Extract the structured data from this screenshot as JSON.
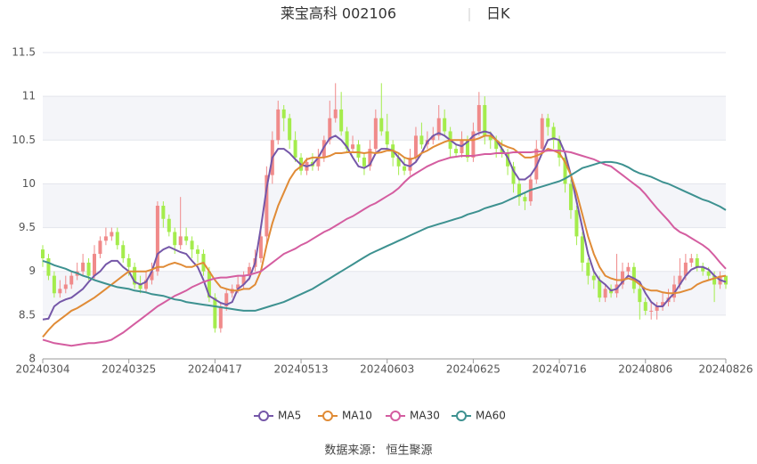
{
  "chart_data": {
    "type": "candlestick",
    "title": "莱宝高科 002106",
    "subtitle": "日K",
    "source": "数据来源： 恒生聚源",
    "up_color": "#f08a8a",
    "down_color": "#a4ec4c",
    "ylim": [
      8,
      11.5
    ],
    "yticks": [
      8,
      8.5,
      9,
      9.5,
      10,
      10.5,
      11,
      11.5
    ],
    "grid": true,
    "legend": "bottom",
    "categories": [
      "20240304",
      null,
      null,
      null,
      null,
      null,
      null,
      null,
      null,
      null,
      null,
      null,
      null,
      null,
      null,
      "20240325",
      null,
      null,
      null,
      null,
      null,
      null,
      null,
      null,
      null,
      null,
      null,
      null,
      null,
      null,
      "20240417",
      null,
      null,
      null,
      null,
      null,
      null,
      null,
      null,
      null,
      null,
      null,
      null,
      null,
      null,
      "20240513",
      null,
      null,
      null,
      null,
      null,
      null,
      null,
      null,
      null,
      null,
      null,
      null,
      null,
      null,
      "20240603",
      null,
      null,
      null,
      null,
      null,
      null,
      null,
      null,
      null,
      null,
      null,
      null,
      null,
      null,
      "20240625",
      null,
      null,
      null,
      null,
      null,
      null,
      null,
      null,
      null,
      null,
      null,
      null,
      null,
      null,
      "20240716",
      null,
      null,
      null,
      null,
      null,
      null,
      null,
      null,
      null,
      null,
      null,
      null,
      null,
      null,
      "20240806",
      null,
      null,
      null,
      null,
      null,
      null,
      null,
      null,
      null,
      null,
      null,
      null,
      null,
      "20240826"
    ],
    "ohlc": [
      [
        9.25,
        9.15,
        9.05,
        9.3
      ],
      [
        9.15,
        8.95,
        8.9,
        9.2
      ],
      [
        8.95,
        8.75,
        8.7,
        9.0
      ],
      [
        8.75,
        8.8,
        8.7,
        8.9
      ],
      [
        8.8,
        8.85,
        8.75,
        8.95
      ],
      [
        8.85,
        8.95,
        8.8,
        9.0
      ],
      [
        8.95,
        9.0,
        8.9,
        9.1
      ],
      [
        9.0,
        9.1,
        8.95,
        9.2
      ],
      [
        9.1,
        8.95,
        8.9,
        9.15
      ],
      [
        8.95,
        9.2,
        8.9,
        9.3
      ],
      [
        9.2,
        9.35,
        9.15,
        9.4
      ],
      [
        9.35,
        9.4,
        9.3,
        9.5
      ],
      [
        9.4,
        9.45,
        9.35,
        9.5
      ],
      [
        9.45,
        9.3,
        9.25,
        9.5
      ],
      [
        9.3,
        9.15,
        9.1,
        9.35
      ],
      [
        9.15,
        9.05,
        8.95,
        9.2
      ],
      [
        9.05,
        8.85,
        8.8,
        9.1
      ],
      [
        8.85,
        8.8,
        8.75,
        8.95
      ],
      [
        8.8,
        8.9,
        8.75,
        9.0
      ],
      [
        8.9,
        9.0,
        8.85,
        9.1
      ],
      [
        9.0,
        9.75,
        8.95,
        9.8
      ],
      [
        9.75,
        9.6,
        9.5,
        9.8
      ],
      [
        9.6,
        9.45,
        9.4,
        9.65
      ],
      [
        9.45,
        9.3,
        9.2,
        9.5
      ],
      [
        9.3,
        9.4,
        9.25,
        9.85
      ],
      [
        9.4,
        9.35,
        9.3,
        9.5
      ],
      [
        9.35,
        9.25,
        9.15,
        9.4
      ],
      [
        9.25,
        9.2,
        9.1,
        9.3
      ],
      [
        9.2,
        9.0,
        8.95,
        9.25
      ],
      [
        9.0,
        8.7,
        8.65,
        9.05
      ],
      [
        8.7,
        8.35,
        8.3,
        8.75
      ],
      [
        8.35,
        8.6,
        8.3,
        8.65
      ],
      [
        8.6,
        8.75,
        8.55,
        8.8
      ],
      [
        8.75,
        8.8,
        8.7,
        8.85
      ],
      [
        8.8,
        8.85,
        8.75,
        8.95
      ],
      [
        8.85,
        8.95,
        8.8,
        9.0
      ],
      [
        8.95,
        9.05,
        8.9,
        9.1
      ],
      [
        9.05,
        9.15,
        9.0,
        9.25
      ],
      [
        9.15,
        9.4,
        9.1,
        9.5
      ],
      [
        9.4,
        10.1,
        9.3,
        10.2
      ],
      [
        10.1,
        10.5,
        10.0,
        10.6
      ],
      [
        10.5,
        10.85,
        10.45,
        10.95
      ],
      [
        10.85,
        10.75,
        10.6,
        10.9
      ],
      [
        10.75,
        10.5,
        10.4,
        10.8
      ],
      [
        10.5,
        10.3,
        10.25,
        10.6
      ],
      [
        10.3,
        10.15,
        10.1,
        10.35
      ],
      [
        10.15,
        10.25,
        10.1,
        10.3
      ],
      [
        10.25,
        10.2,
        10.15,
        10.35
      ],
      [
        10.2,
        10.3,
        10.15,
        10.4
      ],
      [
        10.3,
        10.5,
        10.25,
        10.55
      ],
      [
        10.5,
        10.75,
        10.45,
        10.95
      ],
      [
        10.75,
        10.85,
        10.7,
        11.15
      ],
      [
        10.85,
        10.6,
        10.55,
        11.05
      ],
      [
        10.6,
        10.4,
        10.35,
        10.65
      ],
      [
        10.4,
        10.45,
        10.35,
        10.55
      ],
      [
        10.45,
        10.3,
        10.25,
        10.5
      ],
      [
        10.3,
        10.2,
        10.1,
        10.35
      ],
      [
        10.2,
        10.4,
        10.15,
        10.5
      ],
      [
        10.4,
        10.75,
        10.35,
        10.85
      ],
      [
        10.75,
        10.6,
        10.55,
        11.15
      ],
      [
        10.6,
        10.45,
        10.4,
        10.8
      ],
      [
        10.45,
        10.3,
        10.2,
        10.5
      ],
      [
        10.3,
        10.2,
        10.1,
        10.35
      ],
      [
        10.2,
        10.15,
        10.1,
        10.3
      ],
      [
        10.15,
        10.3,
        10.1,
        10.4
      ],
      [
        10.3,
        10.55,
        10.25,
        10.65
      ],
      [
        10.55,
        10.45,
        10.4,
        10.7
      ],
      [
        10.45,
        10.5,
        10.4,
        10.6
      ],
      [
        10.5,
        10.55,
        10.45,
        10.65
      ],
      [
        10.55,
        10.75,
        10.5,
        10.9
      ],
      [
        10.75,
        10.6,
        10.55,
        10.85
      ],
      [
        10.6,
        10.4,
        10.3,
        10.65
      ],
      [
        10.4,
        10.35,
        10.3,
        10.45
      ],
      [
        10.35,
        10.5,
        10.3,
        10.6
      ],
      [
        10.5,
        10.3,
        10.25,
        10.55
      ],
      [
        10.3,
        10.6,
        10.25,
        10.7
      ],
      [
        10.6,
        10.9,
        10.55,
        11.05
      ],
      [
        10.9,
        10.55,
        10.45,
        11.0
      ],
      [
        10.55,
        10.5,
        10.4,
        10.6
      ],
      [
        10.5,
        10.4,
        10.3,
        10.55
      ],
      [
        10.4,
        10.35,
        10.3,
        10.5
      ],
      [
        10.35,
        10.2,
        10.1,
        10.4
      ],
      [
        10.2,
        10.0,
        9.9,
        10.25
      ],
      [
        10.0,
        9.85,
        9.75,
        10.05
      ],
      [
        9.85,
        9.8,
        9.7,
        9.9
      ],
      [
        9.8,
        10.05,
        9.75,
        10.1
      ],
      [
        10.05,
        10.4,
        10.0,
        10.5
      ],
      [
        10.4,
        10.75,
        10.35,
        10.8
      ],
      [
        10.75,
        10.65,
        10.55,
        10.8
      ],
      [
        10.65,
        10.5,
        10.4,
        10.7
      ],
      [
        10.5,
        10.3,
        10.2,
        10.55
      ],
      [
        10.3,
        10.0,
        9.9,
        10.35
      ],
      [
        10.0,
        9.7,
        9.6,
        10.05
      ],
      [
        9.7,
        9.4,
        9.3,
        9.75
      ],
      [
        9.4,
        9.1,
        9.0,
        9.45
      ],
      [
        9.1,
        8.95,
        8.85,
        9.15
      ],
      [
        8.95,
        8.9,
        8.8,
        9.0
      ],
      [
        8.9,
        8.7,
        8.65,
        8.95
      ],
      [
        8.7,
        8.8,
        8.65,
        8.85
      ],
      [
        8.8,
        8.75,
        8.7,
        8.85
      ],
      [
        8.75,
        8.85,
        8.7,
        9.2
      ],
      [
        8.85,
        9.0,
        8.8,
        9.1
      ],
      [
        9.0,
        9.05,
        8.95,
        9.1
      ],
      [
        9.05,
        8.8,
        8.75,
        9.1
      ],
      [
        8.8,
        8.65,
        8.45,
        8.85
      ],
      [
        8.65,
        8.55,
        8.5,
        8.7
      ],
      [
        8.55,
        8.55,
        8.45,
        8.65
      ],
      [
        8.55,
        8.6,
        8.45,
        8.65
      ],
      [
        8.6,
        8.65,
        8.55,
        8.75
      ],
      [
        8.65,
        8.7,
        8.6,
        8.8
      ],
      [
        8.7,
        8.85,
        8.65,
        8.95
      ],
      [
        8.85,
        8.95,
        8.8,
        9.15
      ],
      [
        8.95,
        9.1,
        8.9,
        9.2
      ],
      [
        9.1,
        9.15,
        9.05,
        9.2
      ],
      [
        9.15,
        9.05,
        9.0,
        9.2
      ],
      [
        9.05,
        9.0,
        8.95,
        9.1
      ],
      [
        9.0,
        8.95,
        8.9,
        9.05
      ],
      [
        8.95,
        8.85,
        8.65,
        9.0
      ],
      [
        8.85,
        8.95,
        8.8,
        9.0
      ],
      [
        8.95,
        8.85,
        8.8,
        8.95
      ]
    ],
    "series": [
      {
        "name": "MA5",
        "color": "#7557a8",
        "values": [
          8.45,
          8.46,
          8.6,
          8.65,
          8.68,
          8.7,
          8.75,
          8.8,
          8.88,
          8.95,
          9.0,
          9.08,
          9.12,
          9.12,
          9.05,
          9.0,
          8.88,
          8.85,
          8.88,
          9.0,
          9.2,
          9.25,
          9.28,
          9.25,
          9.22,
          9.2,
          9.12,
          9.05,
          8.9,
          8.72,
          8.68,
          8.64,
          8.62,
          8.65,
          8.8,
          8.85,
          8.92,
          9.1,
          9.5,
          9.95,
          10.3,
          10.4,
          10.4,
          10.35,
          10.28,
          10.22,
          10.2,
          10.22,
          10.3,
          10.42,
          10.52,
          10.55,
          10.5,
          10.42,
          10.3,
          10.2,
          10.18,
          10.22,
          10.35,
          10.4,
          10.4,
          10.38,
          10.3,
          10.22,
          10.2,
          10.25,
          10.35,
          10.48,
          10.55,
          10.58,
          10.55,
          10.5,
          10.45,
          10.43,
          10.48,
          10.55,
          10.58,
          10.6,
          10.58,
          10.5,
          10.4,
          10.3,
          10.15,
          10.05,
          10.05,
          10.1,
          10.2,
          10.35,
          10.5,
          10.52,
          10.5,
          10.35,
          10.1,
          9.8,
          9.5,
          9.2,
          9.0,
          8.9,
          8.85,
          8.78,
          8.8,
          8.88,
          8.95,
          8.92,
          8.88,
          8.75,
          8.65,
          8.6,
          8.6,
          8.68,
          8.75,
          8.85,
          8.95,
          9.02,
          9.05,
          9.05,
          9.02,
          8.95,
          8.9,
          8.88
        ]
      },
      {
        "name": "MA10",
        "color": "#e08b36",
        "values": [
          8.25,
          8.33,
          8.4,
          8.45,
          8.5,
          8.55,
          8.58,
          8.62,
          8.66,
          8.7,
          8.75,
          8.8,
          8.85,
          8.9,
          8.95,
          9.0,
          9.0,
          9.0,
          9.0,
          9.02,
          9.05,
          9.05,
          9.08,
          9.1,
          9.08,
          9.05,
          9.05,
          9.08,
          9.1,
          9.0,
          8.9,
          8.82,
          8.8,
          8.78,
          8.78,
          8.8,
          8.8,
          8.85,
          9.0,
          9.3,
          9.55,
          9.75,
          9.9,
          10.05,
          10.15,
          10.2,
          10.28,
          10.3,
          10.3,
          10.3,
          10.32,
          10.35,
          10.35,
          10.36,
          10.36,
          10.36,
          10.35,
          10.36,
          10.35,
          10.36,
          10.38,
          10.38,
          10.35,
          10.3,
          10.28,
          10.3,
          10.35,
          10.38,
          10.42,
          10.45,
          10.48,
          10.5,
          10.5,
          10.5,
          10.5,
          10.5,
          10.52,
          10.55,
          10.55,
          10.5,
          10.45,
          10.42,
          10.4,
          10.35,
          10.3,
          10.3,
          10.32,
          10.35,
          10.4,
          10.38,
          10.35,
          10.25,
          10.1,
          9.9,
          9.65,
          9.4,
          9.2,
          9.05,
          8.95,
          8.92,
          8.9,
          8.9,
          8.92,
          8.9,
          8.85,
          8.8,
          8.78,
          8.78,
          8.76,
          8.75,
          8.75,
          8.76,
          8.78,
          8.8,
          8.85,
          8.88,
          8.9,
          8.92,
          8.94,
          8.95
        ]
      },
      {
        "name": "MA30",
        "color": "#d45da0",
        "values": [
          8.22,
          8.2,
          8.18,
          8.17,
          8.16,
          8.15,
          8.16,
          8.17,
          8.18,
          8.18,
          8.19,
          8.2,
          8.22,
          8.26,
          8.3,
          8.35,
          8.4,
          8.45,
          8.5,
          8.55,
          8.6,
          8.64,
          8.68,
          8.72,
          8.75,
          8.78,
          8.82,
          8.85,
          8.88,
          8.9,
          8.92,
          8.93,
          8.93,
          8.94,
          8.95,
          8.95,
          8.96,
          8.98,
          9.0,
          9.05,
          9.1,
          9.15,
          9.2,
          9.23,
          9.26,
          9.3,
          9.33,
          9.37,
          9.41,
          9.45,
          9.48,
          9.52,
          9.56,
          9.6,
          9.63,
          9.67,
          9.71,
          9.75,
          9.78,
          9.82,
          9.86,
          9.9,
          9.95,
          10.02,
          10.08,
          10.12,
          10.16,
          10.2,
          10.23,
          10.26,
          10.28,
          10.3,
          10.31,
          10.32,
          10.32,
          10.32,
          10.33,
          10.34,
          10.34,
          10.35,
          10.35,
          10.35,
          10.36,
          10.36,
          10.36,
          10.36,
          10.37,
          10.37,
          10.38,
          10.38,
          10.38,
          10.37,
          10.36,
          10.34,
          10.32,
          10.3,
          10.28,
          10.25,
          10.22,
          10.2,
          10.15,
          10.1,
          10.05,
          10.0,
          9.95,
          9.88,
          9.8,
          9.72,
          9.65,
          9.58,
          9.5,
          9.45,
          9.42,
          9.38,
          9.34,
          9.3,
          9.25,
          9.18,
          9.1,
          9.03
        ]
      },
      {
        "name": "MA60",
        "color": "#3d9190",
        "values": [
          9.12,
          9.1,
          9.07,
          9.05,
          9.03,
          9.0,
          8.98,
          8.95,
          8.93,
          8.9,
          8.88,
          8.86,
          8.84,
          8.82,
          8.81,
          8.8,
          8.78,
          8.77,
          8.76,
          8.74,
          8.73,
          8.72,
          8.7,
          8.68,
          8.67,
          8.65,
          8.64,
          8.63,
          8.62,
          8.61,
          8.6,
          8.59,
          8.58,
          8.57,
          8.56,
          8.55,
          8.55,
          8.55,
          8.57,
          8.59,
          8.61,
          8.63,
          8.65,
          8.68,
          8.71,
          8.74,
          8.77,
          8.8,
          8.84,
          8.88,
          8.92,
          8.96,
          9.0,
          9.04,
          9.08,
          9.12,
          9.16,
          9.2,
          9.23,
          9.26,
          9.29,
          9.32,
          9.35,
          9.38,
          9.41,
          9.44,
          9.47,
          9.5,
          9.52,
          9.54,
          9.56,
          9.58,
          9.6,
          9.62,
          9.65,
          9.67,
          9.69,
          9.72,
          9.74,
          9.76,
          9.78,
          9.81,
          9.84,
          9.87,
          9.9,
          9.93,
          9.95,
          9.97,
          9.99,
          10.01,
          10.03,
          10.06,
          10.1,
          10.14,
          10.18,
          10.2,
          10.22,
          10.24,
          10.25,
          10.25,
          10.24,
          10.22,
          10.19,
          10.15,
          10.12,
          10.1,
          10.08,
          10.05,
          10.02,
          10.0,
          9.97,
          9.94,
          9.91,
          9.88,
          9.85,
          9.82,
          9.8,
          9.77,
          9.74,
          9.7
        ]
      }
    ]
  }
}
